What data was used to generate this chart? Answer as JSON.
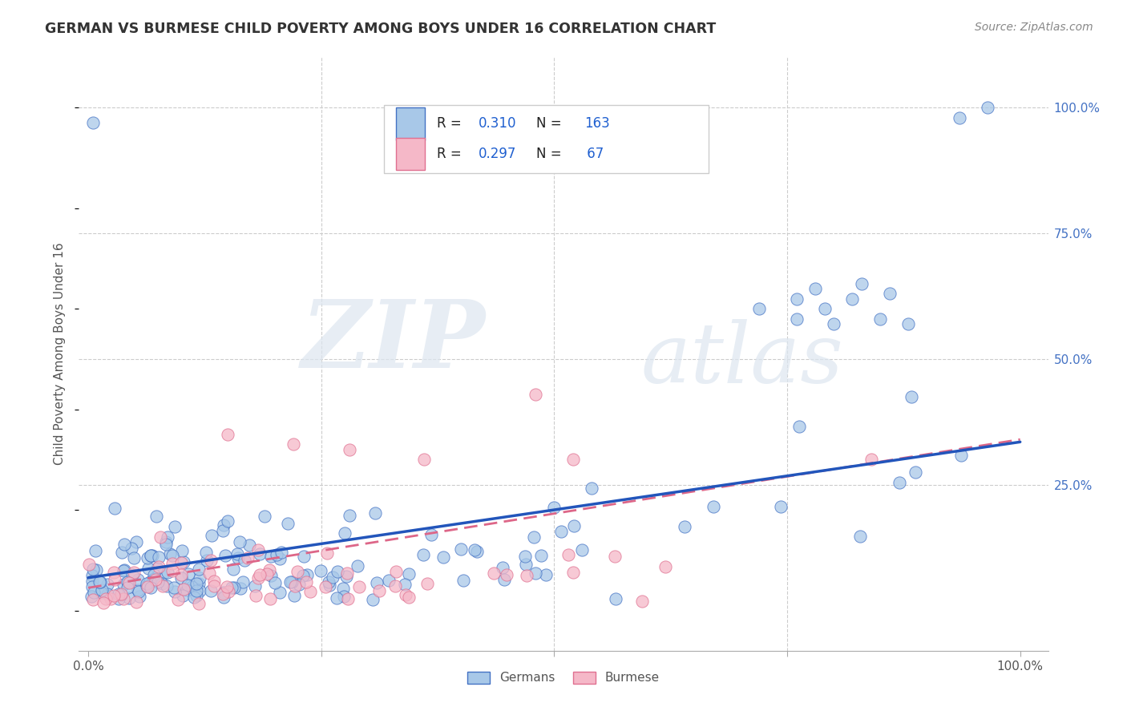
{
  "title": "GERMAN VS BURMESE CHILD POVERTY AMONG BOYS UNDER 16 CORRELATION CHART",
  "source": "Source: ZipAtlas.com",
  "ylabel": "Child Poverty Among Boys Under 16",
  "german_color": "#a8c8e8",
  "burmese_color": "#f5b8c8",
  "german_edge_color": "#4472c4",
  "burmese_edge_color": "#e07090",
  "german_line_color": "#2255bb",
  "burmese_line_color": "#dd6688",
  "R_german": 0.31,
  "N_german": 163,
  "R_burmese": 0.297,
  "N_burmese": 67,
  "watermark_zip": "ZIP",
  "watermark_atlas": "atlas",
  "background_color": "#ffffff",
  "legend_german": "Germans",
  "legend_burmese": "Burmese",
  "seed": 7
}
